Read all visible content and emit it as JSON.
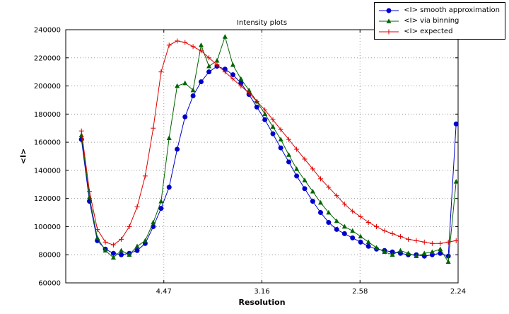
{
  "chart_data": {
    "type": "line",
    "title": "Intensity plots",
    "xlabel": "Resolution",
    "ylabel": "<I>",
    "xlim": [
      0.0,
      0.2
    ],
    "ylim": [
      60000,
      240000
    ],
    "grid": true,
    "legend_position": "upper right, outside top of axes",
    "x_axis_note": "x is reciprocal resolution squared; tick labels show resolution in Angstrom",
    "x_ticks": [
      {
        "v": 0.05,
        "label": "4.47"
      },
      {
        "v": 0.1,
        "label": "3.16"
      },
      {
        "v": 0.15,
        "label": "2.58"
      },
      {
        "v": 0.2,
        "label": "2.24"
      }
    ],
    "y_ticks": [
      {
        "v": 60000,
        "label": "60000"
      },
      {
        "v": 80000,
        "label": "80000"
      },
      {
        "v": 100000,
        "label": "100000"
      },
      {
        "v": 120000,
        "label": "120000"
      },
      {
        "v": 140000,
        "label": "140000"
      },
      {
        "v": 160000,
        "label": "160000"
      },
      {
        "v": 180000,
        "label": "180000"
      },
      {
        "v": 200000,
        "label": "200000"
      },
      {
        "v": 220000,
        "label": "220000"
      },
      {
        "v": 240000,
        "label": "240000"
      }
    ],
    "x": [
      0.008,
      0.0121,
      0.0161,
      0.0202,
      0.0243,
      0.0283,
      0.0324,
      0.0364,
      0.0405,
      0.0446,
      0.0486,
      0.0527,
      0.0568,
      0.0608,
      0.0649,
      0.069,
      0.073,
      0.0771,
      0.0812,
      0.0852,
      0.0893,
      0.0934,
      0.0974,
      0.1015,
      0.1056,
      0.1096,
      0.1137,
      0.1177,
      0.1218,
      0.1259,
      0.1299,
      0.134,
      0.1381,
      0.1421,
      0.1462,
      0.1503,
      0.1543,
      0.1584,
      0.1625,
      0.1665,
      0.1706,
      0.1746,
      0.1787,
      0.1828,
      0.1868,
      0.1909,
      0.195,
      0.199
    ],
    "series": [
      {
        "name": "<I> smooth approximation",
        "color": "#0000cd",
        "marker": "circle",
        "values": [
          162000,
          118000,
          90000,
          84000,
          81000,
          80000,
          81000,
          83000,
          88000,
          100000,
          113000,
          128000,
          155000,
          178000,
          193000,
          203000,
          210000,
          214000,
          212000,
          208000,
          202000,
          194000,
          185000,
          176000,
          166000,
          156000,
          146000,
          136000,
          127000,
          118000,
          110000,
          103000,
          98000,
          95000,
          92000,
          89000,
          86000,
          84000,
          83000,
          82000,
          81000,
          80000,
          80000,
          79000,
          80000,
          81000,
          79000,
          173000
        ]
      },
      {
        "name": "<I> via binning",
        "color": "#006400",
        "marker": "triangle",
        "values": [
          165000,
          121000,
          92000,
          83000,
          78000,
          83000,
          80000,
          86000,
          90000,
          103000,
          118000,
          163000,
          200000,
          202000,
          197000,
          229000,
          214000,
          218000,
          235000,
          215000,
          205000,
          197000,
          189000,
          180000,
          171000,
          162000,
          151000,
          141000,
          133000,
          125000,
          117000,
          110000,
          104000,
          100000,
          97000,
          93000,
          89000,
          85000,
          82000,
          80000,
          83000,
          81000,
          79000,
          81000,
          82000,
          84000,
          75000,
          132000
        ]
      },
      {
        "name": "<I> expected",
        "color": "#dd0000",
        "marker": "plus",
        "values": [
          168000,
          125000,
          98000,
          89000,
          87000,
          91000,
          100000,
          114000,
          136000,
          170000,
          210000,
          229000,
          232000,
          231000,
          228000,
          225000,
          220000,
          215000,
          210000,
          205000,
          200000,
          195000,
          189000,
          183000,
          176000,
          169000,
          162000,
          155000,
          148000,
          141000,
          134000,
          128000,
          122000,
          116000,
          111000,
          107000,
          103000,
          100000,
          97000,
          95000,
          93000,
          91000,
          90000,
          89000,
          88000,
          88000,
          89000,
          90000
        ]
      }
    ]
  }
}
